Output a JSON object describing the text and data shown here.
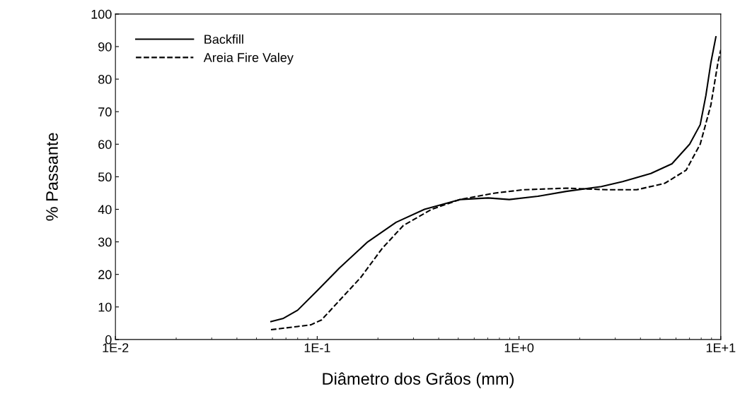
{
  "chart_data": {
    "type": "line",
    "xlabel": "Diâmetro dos Grãos (mm)",
    "ylabel": "% Passante",
    "log": "x",
    "xlim": [
      0.01,
      10
    ],
    "ylim": [
      0,
      100
    ],
    "xticks": [
      {
        "value": 0.01,
        "label": "1E-2"
      },
      {
        "value": 0.1,
        "label": "1E-1"
      },
      {
        "value": 1,
        "label": "1E+0"
      },
      {
        "value": 10,
        "label": "1E+1"
      }
    ],
    "yticks": [
      0,
      10,
      20,
      30,
      40,
      50,
      60,
      70,
      80,
      90,
      100
    ],
    "grid": false,
    "legend": "top left",
    "marker": "none",
    "series": [
      {
        "name": "Backfill",
        "color": "#000000",
        "line_style": "solid",
        "x": [
          0.059,
          0.068,
          0.08,
          0.1,
          0.129,
          0.178,
          0.246,
          0.34,
          0.509,
          0.703,
          0.895,
          1.24,
          1.71,
          2.56,
          3.26,
          4.5,
          5.73,
          7.01,
          7.91,
          8.44,
          8.93,
          9.46
        ],
        "values": [
          5.5,
          6.5,
          9,
          15,
          22,
          30,
          36,
          40,
          43,
          43.5,
          43,
          44,
          45.5,
          47,
          48.5,
          51,
          54,
          60,
          66,
          75,
          85,
          93
        ]
      },
      {
        "name": "Areia Fire Valey",
        "color": "#000000",
        "line_style": "dashed",
        "x": [
          0.059,
          0.08,
          0.093,
          0.105,
          0.129,
          0.164,
          0.21,
          0.267,
          0.369,
          0.509,
          0.762,
          1.05,
          1.71,
          2.77,
          3.83,
          5.28,
          6.73,
          7.91,
          8.93,
          9.68,
          10
        ],
        "values": [
          3,
          4,
          4.5,
          6,
          12,
          19,
          28,
          35,
          40,
          43,
          45,
          46,
          46.5,
          46,
          46,
          48,
          52,
          60,
          72,
          85,
          89
        ]
      }
    ]
  }
}
